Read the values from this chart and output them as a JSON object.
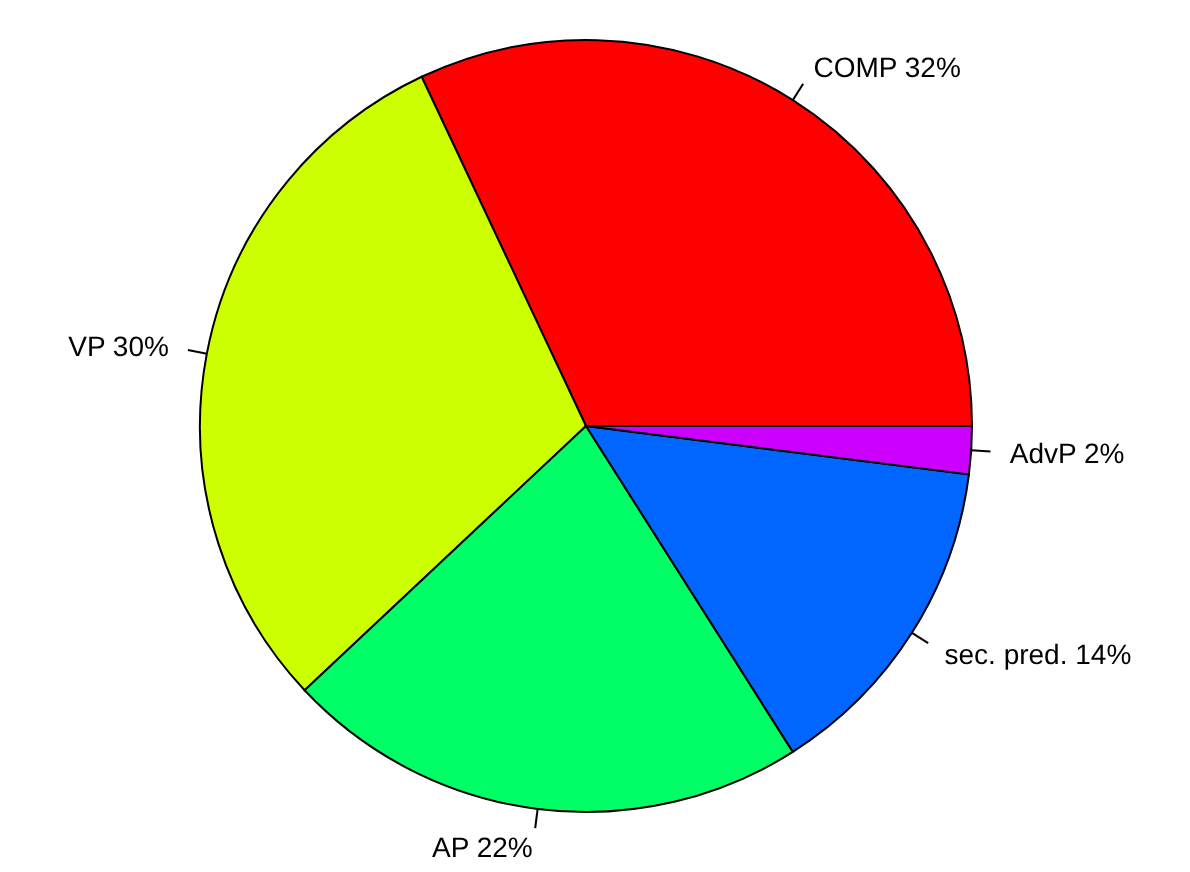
{
  "chart_data": {
    "type": "pie",
    "categories": [
      "COMP 32%",
      "VP 30%",
      "AP 22%",
      "sec. pred. 14%",
      "AdvP 2%"
    ],
    "values": [
      32,
      30,
      22,
      14,
      2
    ],
    "colors": [
      "#ff0000",
      "#ccff00",
      "#00ff66",
      "#0066ff",
      "#cc00ff"
    ]
  }
}
